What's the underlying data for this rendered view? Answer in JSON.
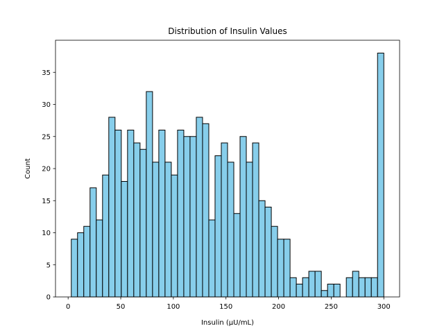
{
  "chart_data": {
    "type": "bar",
    "title": "Distribution of Insulin Values",
    "xlabel": "Insulin (μU/mL)",
    "ylabel": "Count",
    "bin_start": 3,
    "bin_width": 5.94,
    "values": [
      9,
      10,
      11,
      17,
      12,
      19,
      28,
      26,
      18,
      26,
      24,
      23,
      32,
      21,
      26,
      21,
      19,
      26,
      25,
      25,
      28,
      27,
      12,
      22,
      24,
      21,
      13,
      25,
      21,
      24,
      15,
      14,
      11,
      9,
      9,
      3,
      2,
      3,
      4,
      4,
      1,
      2,
      2,
      0,
      3,
      4,
      3,
      3,
      3,
      38
    ],
    "xlim": [
      -12,
      315
    ],
    "ylim": [
      0,
      40
    ],
    "xticks": [
      0,
      50,
      100,
      150,
      200,
      250,
      300
    ],
    "yticks": [
      0,
      5,
      10,
      15,
      20,
      25,
      30,
      35
    ],
    "bar_color": "#87CEEB",
    "edge_color": "#000000",
    "grid": false
  }
}
